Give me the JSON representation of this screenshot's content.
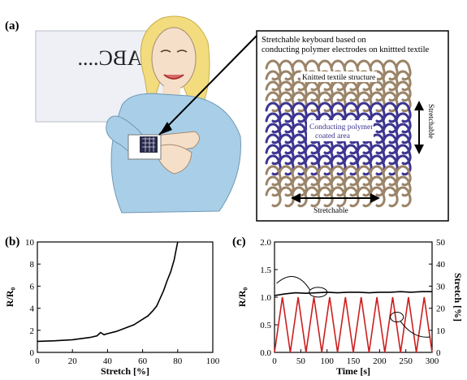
{
  "panel_a": {
    "label": "(a)",
    "screen_text": "ABC....",
    "inset_title_line1": "Stretchable keyboard based on",
    "inset_title_line2": "conducting polymer electrodes on knittted textile",
    "knit_label": "Knitted textile structure",
    "coated_label_line1": "Conducting polymer",
    "coated_label_line2": "coated area",
    "stretch_vertical": "Stretchable",
    "stretch_horizontal": "Stretchable",
    "colors": {
      "textile": "#9b8468",
      "polymer": "#3d3590",
      "skin": "#f6dfc8",
      "hair": "#f2dc7e",
      "shirt": "#a9cfe8",
      "screen": "#eef0f6"
    }
  },
  "chart_data": [
    {
      "id": "b",
      "label": "(b)",
      "type": "line",
      "xlabel": "Stretch [%]",
      "ylabel": "R/R₀",
      "xlim": [
        0,
        100
      ],
      "ylim": [
        0,
        10
      ],
      "xticks": [
        0,
        20,
        40,
        60,
        80,
        100
      ],
      "yticks": [
        0,
        2,
        4,
        6,
        8,
        10
      ],
      "series": [
        {
          "color": "#000000",
          "x": [
            0,
            10,
            20,
            30,
            34,
            36,
            38,
            40,
            45,
            50,
            55,
            60,
            63,
            66,
            68,
            70,
            72,
            74,
            76,
            78,
            79,
            80
          ],
          "y": [
            1.0,
            1.05,
            1.15,
            1.35,
            1.5,
            1.8,
            1.6,
            1.7,
            1.9,
            2.2,
            2.5,
            3.0,
            3.3,
            3.8,
            4.2,
            4.9,
            5.6,
            6.5,
            7.3,
            8.4,
            9.2,
            10.0
          ]
        }
      ]
    },
    {
      "id": "c",
      "label": "(c)",
      "type": "line",
      "xlabel": "Time [s]",
      "ylabel": "R/R₀",
      "ylabel_right": "Stretch [%]",
      "xlim": [
        0,
        300
      ],
      "ylim": [
        0,
        2.0
      ],
      "ylim_right": [
        0,
        50
      ],
      "xticks": [
        0,
        50,
        100,
        150,
        200,
        250,
        300
      ],
      "yticks": [
        0.0,
        0.5,
        1.0,
        1.5,
        2.0
      ],
      "yticks_right": [
        0,
        10,
        20,
        30,
        40,
        50
      ],
      "series": [
        {
          "axis": "left",
          "color": "#000000",
          "x": [
            0,
            20,
            40,
            60,
            80,
            100,
            120,
            140,
            160,
            180,
            200,
            220,
            240,
            260,
            280,
            300
          ],
          "y": [
            1.03,
            1.06,
            1.08,
            1.07,
            1.08,
            1.09,
            1.08,
            1.09,
            1.09,
            1.08,
            1.09,
            1.09,
            1.1,
            1.09,
            1.1,
            1.1
          ]
        },
        {
          "axis": "right",
          "color": "#cc1f1f",
          "x": [
            0,
            15,
            30,
            45,
            60,
            75,
            90,
            105,
            120,
            135,
            150,
            165,
            180,
            195,
            210,
            225,
            240,
            255,
            270,
            285,
            300
          ],
          "y": [
            0,
            25,
            0,
            25,
            0,
            25,
            0,
            25,
            0,
            25,
            0,
            25,
            0,
            25,
            0,
            25,
            0,
            25,
            0,
            25,
            0
          ]
        }
      ]
    }
  ]
}
